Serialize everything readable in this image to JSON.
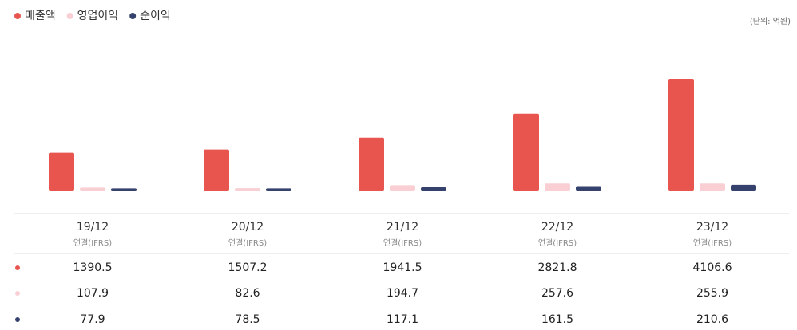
{
  "chart_data": {
    "type": "bar",
    "unit": "(단위: 억원)",
    "categories": [
      "19/12",
      "20/12",
      "21/12",
      "22/12",
      "23/12"
    ],
    "category_notes": [
      "연결(IFRS)",
      "연결(IFRS)",
      "연결(IFRS)",
      "연결(IFRS)",
      "연결(IFRS)"
    ],
    "series": [
      {
        "name": "매출액",
        "color": "#e8554e",
        "values": [
          1390.5,
          1507.2,
          1941.5,
          2821.8,
          4106.6
        ]
      },
      {
        "name": "영업이익",
        "color": "#f9cfd3",
        "values": [
          107.9,
          82.6,
          194.7,
          257.6,
          255.9
        ]
      },
      {
        "name": "순이익",
        "color": "#36426e",
        "values": [
          77.9,
          78.5,
          117.1,
          161.5,
          210.6
        ]
      }
    ]
  }
}
